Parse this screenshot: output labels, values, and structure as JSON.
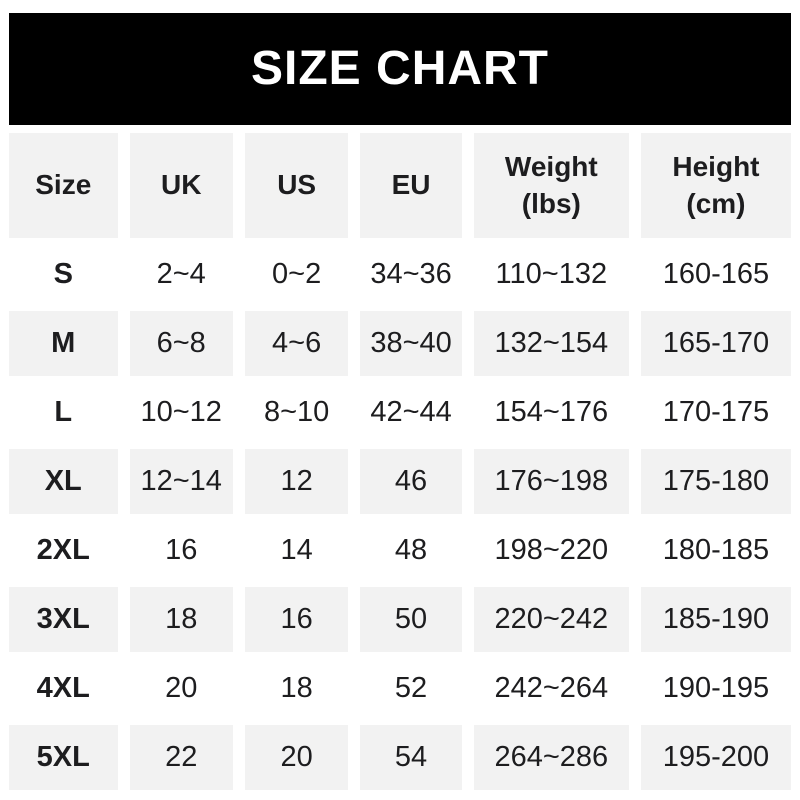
{
  "banner": {
    "title": "SIZE CHART",
    "background": "#000000",
    "text_color": "#ffffff"
  },
  "colors": {
    "row_alt_background": "#f2f2f2",
    "row_background": "#ffffff",
    "text": "#1d1d1f"
  },
  "chart_data": {
    "type": "table",
    "title": "SIZE CHART",
    "columns": [
      {
        "key": "size",
        "lines": [
          "Size"
        ]
      },
      {
        "key": "uk",
        "lines": [
          "UK"
        ]
      },
      {
        "key": "us",
        "lines": [
          "US"
        ]
      },
      {
        "key": "eu",
        "lines": [
          "EU"
        ]
      },
      {
        "key": "weight",
        "lines": [
          "Weight",
          "(lbs)"
        ]
      },
      {
        "key": "height",
        "lines": [
          "Height",
          "(cm)"
        ]
      }
    ],
    "rows": [
      [
        "S",
        "2~4",
        "0~2",
        "34~36",
        "110~132",
        "160-165"
      ],
      [
        "M",
        "6~8",
        "4~6",
        "38~40",
        "132~154",
        "165-170"
      ],
      [
        "L",
        "10~12",
        "8~10",
        "42~44",
        "154~176",
        "170-175"
      ],
      [
        "XL",
        "12~14",
        "12",
        "46",
        "176~198",
        "175-180"
      ],
      [
        "2XL",
        "16",
        "14",
        "48",
        "198~220",
        "180-185"
      ],
      [
        "3XL",
        "18",
        "16",
        "50",
        "220~242",
        "185-190"
      ],
      [
        "4XL",
        "20",
        "18",
        "52",
        "242~264",
        "190-195"
      ],
      [
        "5XL",
        "22",
        "20",
        "54",
        "264~286",
        "195-200"
      ]
    ],
    "layout": {
      "header_background": "#f2f2f2",
      "alternating_rows": "odd rows white, even rows gray",
      "range_separator_body": "~",
      "range_separator_height": "-"
    }
  }
}
